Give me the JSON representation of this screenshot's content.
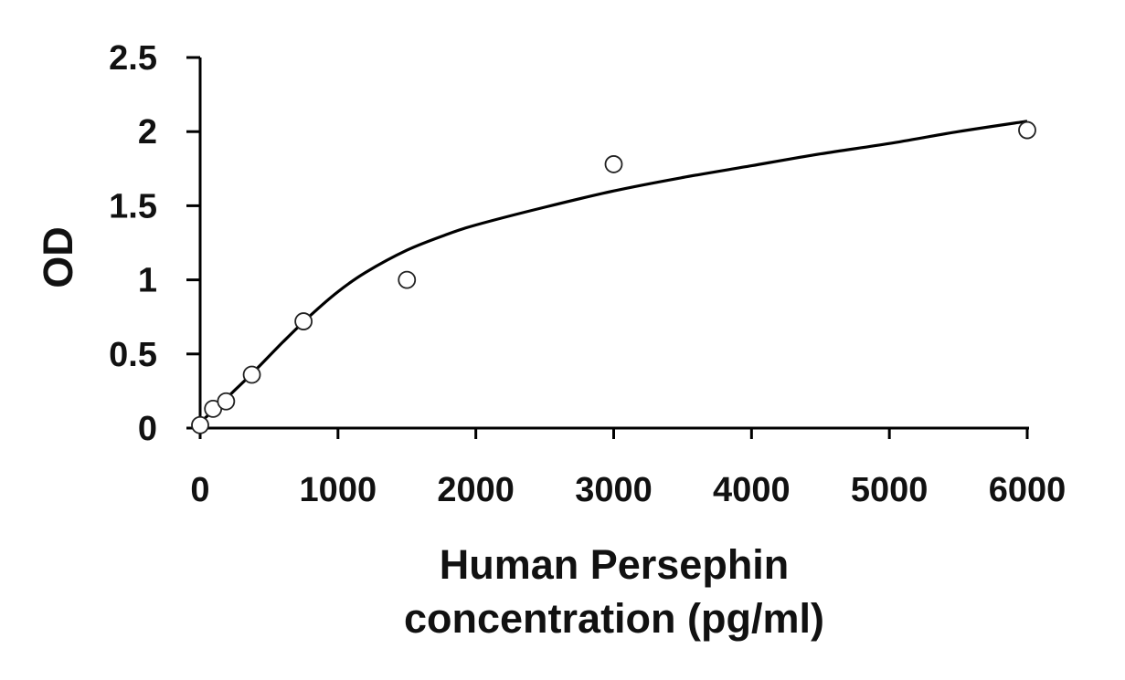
{
  "chart_data": {
    "type": "scatter",
    "title": "",
    "xlabel_lines": [
      "Human Persephin",
      "concentration (pg/ml)"
    ],
    "ylabel": "OD",
    "xlim": [
      0,
      6000
    ],
    "ylim": [
      0,
      2.5
    ],
    "xticks": [
      0,
      1000,
      2000,
      3000,
      4000,
      5000,
      6000
    ],
    "yticks": [
      0,
      0.5,
      1,
      1.5,
      2,
      2.5
    ],
    "xtick_labels": [
      "0",
      "1000",
      "2000",
      "3000",
      "4000",
      "5000",
      "6000"
    ],
    "ytick_labels": [
      "0",
      "0.5",
      "1",
      "1.5",
      "2",
      "2.5"
    ],
    "grid": false,
    "legend": "none",
    "series": [
      {
        "kind": "points",
        "marker": "open-circle",
        "x": [
          0,
          94,
          188,
          375,
          750,
          1500,
          3000,
          6000
        ],
        "y": [
          0.02,
          0.13,
          0.18,
          0.36,
          0.72,
          1.0,
          1.78,
          2.01
        ]
      },
      {
        "kind": "fit-curve",
        "x": [
          0,
          100,
          200,
          400,
          600,
          800,
          1000,
          1200,
          1500,
          1800,
          2000,
          2500,
          3000,
          3500,
          4000,
          4500,
          5000,
          5500,
          6000
        ],
        "y": [
          0.04,
          0.12,
          0.21,
          0.39,
          0.58,
          0.76,
          0.92,
          1.05,
          1.2,
          1.31,
          1.37,
          1.49,
          1.6,
          1.69,
          1.77,
          1.85,
          1.92,
          2.0,
          2.07
        ]
      }
    ],
    "colors": {
      "axis": "#000000",
      "curve": "#000000",
      "marker_stroke": "#222222",
      "marker_fill": "#ffffff"
    }
  }
}
